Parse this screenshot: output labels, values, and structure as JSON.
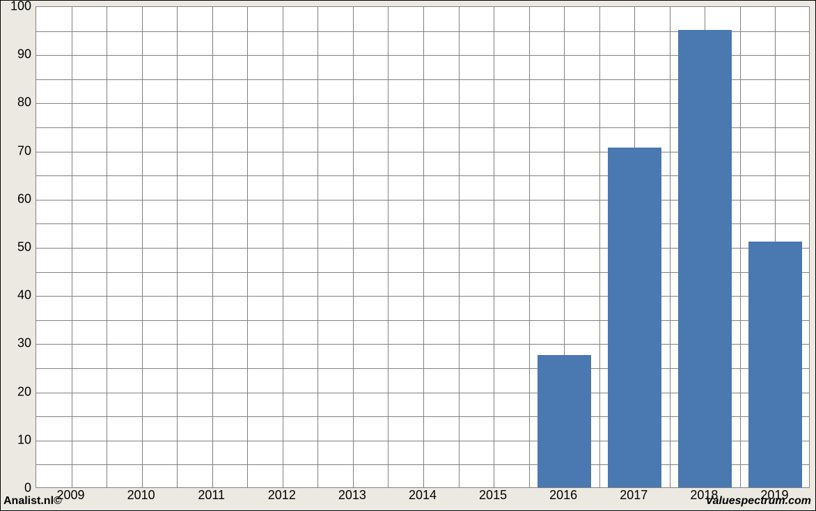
{
  "chart": {
    "type": "bar",
    "categories": [
      "2009",
      "2010",
      "2011",
      "2012",
      "2013",
      "2014",
      "2015",
      "2016",
      "2017",
      "2018",
      "2019"
    ],
    "values": [
      0,
      0,
      0,
      0,
      0,
      0,
      0,
      27.5,
      70.5,
      95,
      51
    ],
    "bar_color": "#4a78b1",
    "ylim_min": 0,
    "ylim_max": 100,
    "ytick_step": 10,
    "hgrid_per_step": 2,
    "grid_color": "#808080",
    "plot_bg": "#ffffff",
    "outer_bg": "#ece9e2",
    "axis_font_size": 18,
    "bar_width_ratio": 0.76,
    "footer_left": "Analist.nl©",
    "footer_right": "Valuespectrum.com"
  }
}
